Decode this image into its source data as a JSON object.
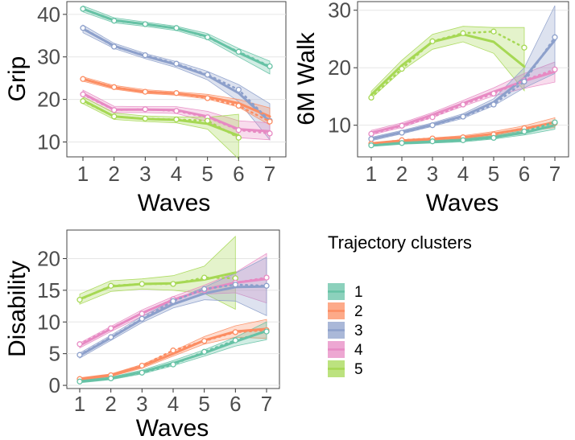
{
  "colors": {
    "1": "#66c2a5",
    "2": "#fc8d62",
    "3": "#8da0cb",
    "4": "#e78ac3",
    "5": "#a6d854"
  },
  "legend": {
    "title": "Trajectory clusters",
    "items": [
      {
        "key": "1",
        "label": "1"
      },
      {
        "key": "2",
        "label": "2"
      },
      {
        "key": "3",
        "label": "3"
      },
      {
        "key": "4",
        "label": "4"
      },
      {
        "key": "5",
        "label": "5"
      }
    ]
  },
  "chart_data": [
    {
      "id": "grip",
      "type": "line",
      "title": "",
      "xlabel": "Waves",
      "ylabel": "Grip",
      "x": [
        1,
        2,
        3,
        4,
        5,
        6,
        7
      ],
      "xticks": [
        "1",
        "2",
        "3",
        "4",
        "5",
        "6",
        "7"
      ],
      "ylim": [
        6.5,
        43
      ],
      "yticks": [
        10,
        20,
        30,
        40
      ],
      "series": [
        {
          "name": "1",
          "obs": [
            41.3,
            38.5,
            37.7,
            36.8,
            34.6,
            31.2,
            27.8
          ],
          "fit": [
            41.3,
            38.6,
            37.7,
            36.7,
            34.8,
            31.0,
            27.6
          ],
          "lower": [
            40.6,
            38.0,
            37.2,
            36.2,
            34.1,
            30.0,
            26.0
          ],
          "upper": [
            42.0,
            39.2,
            38.2,
            37.2,
            35.5,
            32.0,
            29.0
          ]
        },
        {
          "name": "3",
          "obs": [
            36.8,
            32.4,
            30.4,
            28.4,
            25.8,
            22.3,
            15.0
          ],
          "fit": [
            36.6,
            32.6,
            30.2,
            28.2,
            25.6,
            21.5,
            14.8
          ],
          "lower": [
            35.7,
            32.0,
            29.6,
            27.5,
            24.6,
            19.5,
            10.5
          ],
          "upper": [
            37.5,
            33.2,
            30.8,
            28.9,
            26.6,
            23.5,
            19.0
          ]
        },
        {
          "name": "2",
          "obs": [
            24.8,
            22.9,
            21.8,
            21.5,
            20.3,
            18.5,
            14.8
          ],
          "fit": [
            24.8,
            22.8,
            21.8,
            21.4,
            20.6,
            19.1,
            16.0
          ],
          "lower": [
            24.3,
            22.4,
            21.4,
            21.0,
            20.1,
            18.2,
            14.0
          ],
          "upper": [
            25.3,
            23.3,
            22.3,
            21.8,
            21.2,
            20.0,
            18.0
          ]
        },
        {
          "name": "4",
          "obs": [
            21.2,
            17.5,
            17.7,
            17.3,
            15.8,
            12.8,
            12.0
          ],
          "fit": [
            21.4,
            17.6,
            17.6,
            17.5,
            16.0,
            13.0,
            12.5
          ],
          "lower": [
            20.6,
            16.9,
            16.9,
            16.7,
            14.8,
            11.0,
            10.5
          ],
          "upper": [
            22.2,
            18.4,
            18.3,
            18.3,
            17.2,
            15.0,
            14.5
          ]
        },
        {
          "name": "5",
          "obs": [
            19.6,
            16.0,
            15.5,
            15.3,
            15.0,
            11.0,
            null
          ],
          "fit": [
            19.8,
            16.0,
            15.4,
            15.2,
            14.3,
            11.5,
            null
          ],
          "lower": [
            19.0,
            15.3,
            14.8,
            14.5,
            13.0,
            6.0,
            null
          ],
          "upper": [
            20.6,
            16.8,
            16.1,
            15.9,
            15.8,
            16.5,
            null
          ]
        }
      ]
    },
    {
      "id": "walk",
      "type": "line",
      "title": "",
      "xlabel": "Waves",
      "ylabel": "6M Walk",
      "x": [
        1,
        2,
        3,
        4,
        5,
        6,
        7
      ],
      "xticks": [
        "1",
        "2",
        "3",
        "4",
        "5",
        "6",
        "7"
      ],
      "ylim": [
        4.5,
        31.5
      ],
      "yticks": [
        10,
        20,
        30
      ],
      "series": [
        {
          "name": "5",
          "obs": [
            14.8,
            19.8,
            24.6,
            26.0,
            26.3,
            23.5,
            null
          ],
          "fit": [
            15.3,
            20.4,
            24.5,
            25.8,
            24.5,
            20.2,
            null
          ],
          "lower": [
            14.7,
            19.5,
            23.2,
            24.5,
            22.5,
            16.0,
            null
          ],
          "upper": [
            15.9,
            21.3,
            25.8,
            27.2,
            27.0,
            27.0,
            null
          ]
        },
        {
          "name": "4",
          "obs": [
            8.5,
            9.9,
            11.4,
            13.6,
            15.5,
            17.8,
            19.7
          ],
          "fit": [
            8.7,
            10.0,
            11.8,
            13.8,
            15.8,
            17.7,
            19.3
          ],
          "lower": [
            8.3,
            9.6,
            11.4,
            13.3,
            15.1,
            16.4,
            17.5
          ],
          "upper": [
            9.1,
            10.4,
            12.2,
            14.3,
            16.5,
            19.0,
            21.0
          ]
        },
        {
          "name": "3",
          "obs": [
            7.6,
            8.7,
            10.0,
            11.5,
            13.6,
            17.6,
            25.3
          ],
          "fit": [
            7.6,
            8.8,
            10.1,
            11.6,
            14.0,
            18.2,
            24.8
          ],
          "lower": [
            7.3,
            8.5,
            9.8,
            11.2,
            13.4,
            16.5,
            19.0
          ],
          "upper": [
            7.9,
            9.1,
            10.4,
            12.0,
            14.6,
            20.0,
            30.8
          ]
        },
        {
          "name": "2",
          "obs": [
            6.8,
            7.4,
            7.7,
            7.9,
            8.4,
            9.5,
            10.4
          ],
          "fit": [
            6.8,
            7.3,
            7.6,
            7.9,
            8.5,
            9.4,
            10.5
          ],
          "lower": [
            6.6,
            7.1,
            7.4,
            7.6,
            8.1,
            8.9,
            9.6
          ],
          "upper": [
            7.0,
            7.5,
            7.8,
            8.2,
            8.9,
            9.9,
            11.3
          ]
        },
        {
          "name": "1",
          "obs": [
            6.5,
            6.9,
            7.2,
            7.4,
            7.8,
            8.9,
            10.5
          ],
          "fit": [
            6.5,
            6.9,
            7.1,
            7.4,
            7.9,
            8.7,
            10.0
          ],
          "lower": [
            6.3,
            6.7,
            6.9,
            7.1,
            7.6,
            8.3,
            9.3
          ],
          "upper": [
            6.7,
            7.1,
            7.3,
            7.7,
            8.2,
            9.1,
            10.8
          ]
        }
      ]
    },
    {
      "id": "disability",
      "type": "line",
      "title": "",
      "xlabel": "Waves",
      "ylabel": "Disability",
      "x": [
        1,
        2,
        3,
        4,
        5,
        6,
        7
      ],
      "xticks": [
        "1",
        "2",
        "3",
        "4",
        "5",
        "6",
        "7"
      ],
      "ylim": [
        -0.5,
        24.5
      ],
      "yticks": [
        0,
        5,
        10,
        15,
        20
      ],
      "series": [
        {
          "name": "5",
          "obs": [
            13.5,
            15.7,
            16.0,
            16.0,
            17.0,
            16.9,
            null
          ],
          "fit": [
            13.6,
            15.6,
            16.0,
            16.1,
            16.7,
            17.8,
            null
          ],
          "lower": [
            12.8,
            14.8,
            15.2,
            15.0,
            14.5,
            12.0,
            null
          ],
          "upper": [
            14.4,
            16.5,
            16.8,
            17.3,
            18.8,
            23.5,
            null
          ]
        },
        {
          "name": "4",
          "obs": [
            6.5,
            9.0,
            11.3,
            13.6,
            15.0,
            16.2,
            17.0
          ],
          "fit": [
            6.3,
            8.9,
            11.4,
            13.5,
            15.1,
            16.2,
            16.8
          ],
          "lower": [
            5.9,
            8.5,
            10.9,
            13.0,
            14.4,
            14.6,
            13.0
          ],
          "upper": [
            6.7,
            9.3,
            11.9,
            14.0,
            15.8,
            17.8,
            20.8
          ]
        },
        {
          "name": "3",
          "obs": [
            4.8,
            7.6,
            10.5,
            13.3,
            15.2,
            15.9,
            15.7
          ],
          "fit": [
            4.7,
            7.5,
            10.4,
            12.8,
            14.5,
            15.5,
            15.6
          ],
          "lower": [
            4.3,
            7.1,
            9.9,
            12.2,
            13.5,
            13.3,
            11.0
          ],
          "upper": [
            5.1,
            7.9,
            10.9,
            13.4,
            15.5,
            17.7,
            20.2
          ]
        },
        {
          "name": "2",
          "obs": [
            1.0,
            1.6,
            3.1,
            5.5,
            7.0,
            8.4,
            8.7
          ],
          "fit": [
            1.0,
            1.6,
            3.0,
            5.0,
            7.1,
            8.5,
            8.9
          ],
          "lower": [
            0.8,
            1.4,
            2.7,
            4.6,
            6.5,
            7.6,
            7.4
          ],
          "upper": [
            1.2,
            1.8,
            3.3,
            5.4,
            7.7,
            9.4,
            10.4
          ]
        },
        {
          "name": "1",
          "obs": [
            0.6,
            1.1,
            2.0,
            3.3,
            5.3,
            7.1,
            8.5
          ],
          "fit": [
            0.6,
            1.1,
            2.1,
            3.5,
            5.1,
            6.9,
            8.6
          ],
          "lower": [
            0.4,
            0.9,
            1.8,
            3.1,
            4.6,
            6.2,
            7.2
          ],
          "upper": [
            0.8,
            1.3,
            2.4,
            3.9,
            5.6,
            7.6,
            10.0
          ]
        }
      ]
    }
  ]
}
